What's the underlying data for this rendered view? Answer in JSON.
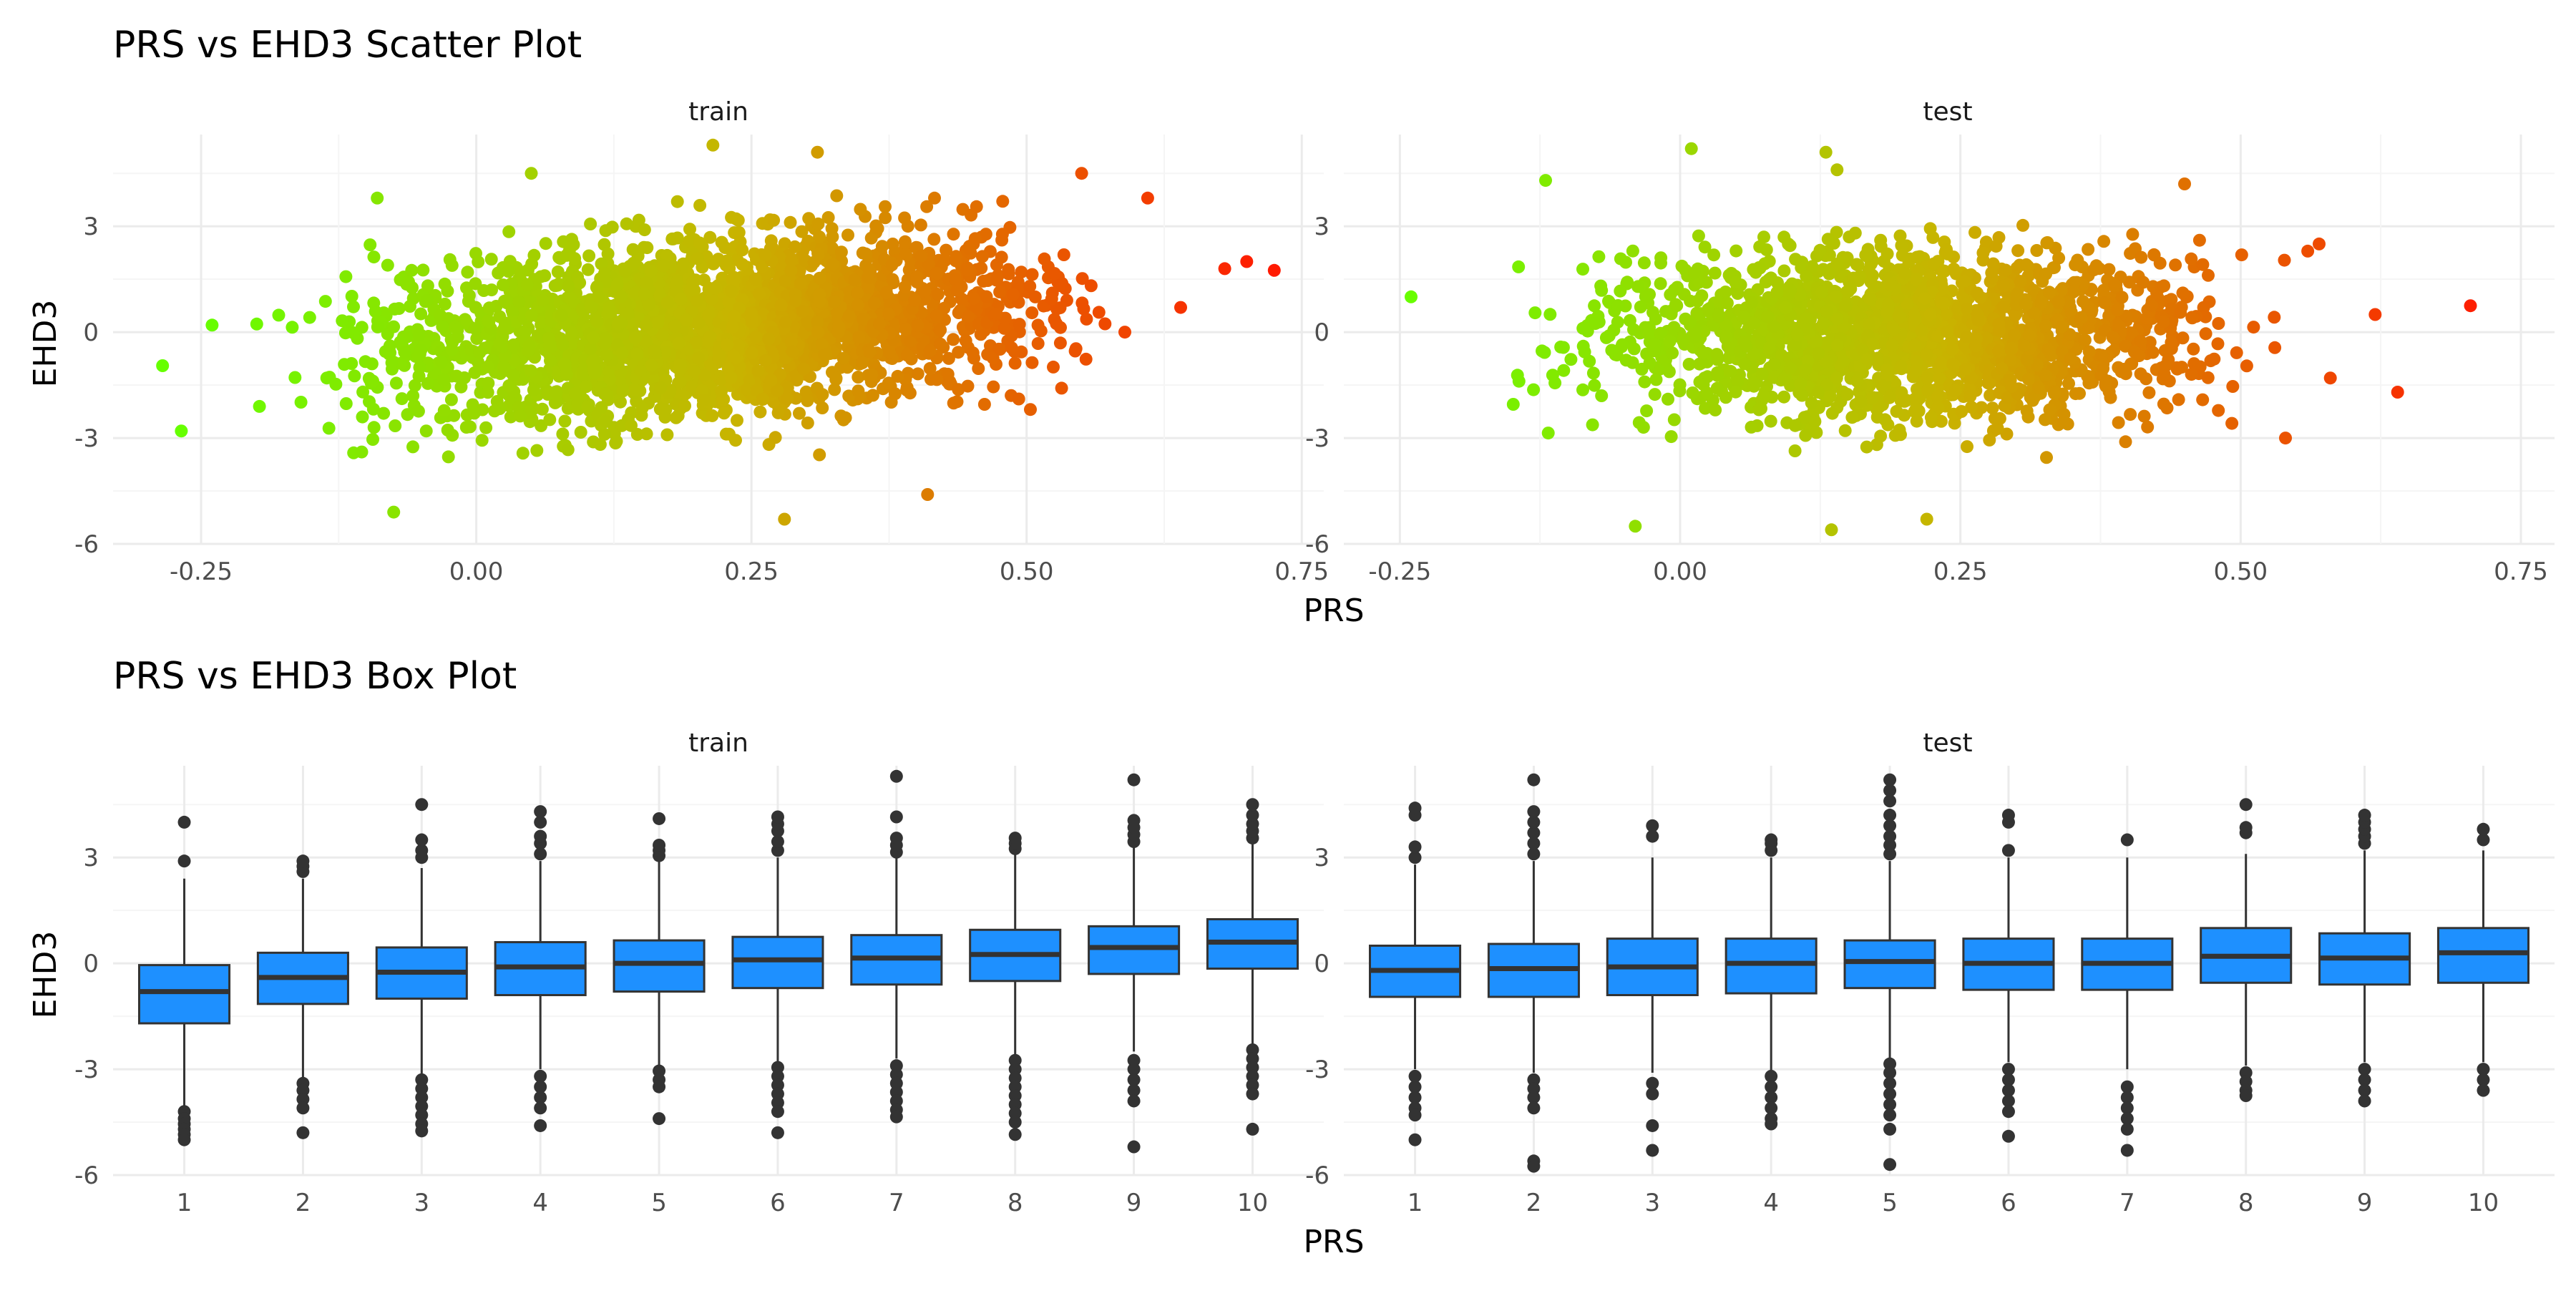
{
  "figure": {
    "scatter_title": "PRS vs EHD3 Scatter Plot",
    "box_title": "PRS vs EHD3 Box Plot"
  },
  "colors": {
    "grid_major": "#ebebeb",
    "grid_minor": "#f5f5f5",
    "box_fill": "#1e90ff",
    "box_stroke": "#333333",
    "gradient_low": "#66ff00",
    "gradient_mid": "#c8b400",
    "gradient_high": "#ff1a00"
  },
  "chart_data": [
    {
      "type": "scatter",
      "title": "PRS vs EHD3 Scatter Plot",
      "xlabel": "PRS",
      "ylabel": "EHD3",
      "color_scale": "gradient by PRS: green (low) to red (high)",
      "panels": [
        {
          "name": "train",
          "xlim": [
            -0.33,
            0.77
          ],
          "ylim": [
            -6.0,
            5.6
          ],
          "xticks": [
            -0.25,
            0.0,
            0.25,
            0.5,
            0.75
          ],
          "xtick_labels": [
            "-0.25",
            "0.00",
            "0.25",
            "0.50",
            "0.75"
          ],
          "yticks": [
            -6,
            -3,
            0,
            3
          ],
          "ytick_labels": [
            "-6",
            "-3",
            "0",
            "3"
          ],
          "cloud": {
            "x_min": -0.22,
            "x_max": 0.64,
            "slope": 2.3,
            "intercept": -0.15,
            "sd": 1.25,
            "n": 2600,
            "seed": 11
          },
          "outliers": [
            {
              "x": -0.285,
              "y": -0.95
            },
            {
              "x": -0.268,
              "y": -2.8
            },
            {
              "x": -0.24,
              "y": 0.2
            },
            {
              "x": -0.09,
              "y": 3.8
            },
            {
              "x": -0.075,
              "y": -5.1
            },
            {
              "x": 0.05,
              "y": 4.5
            },
            {
              "x": 0.215,
              "y": 5.3
            },
            {
              "x": 0.31,
              "y": 5.1
            },
            {
              "x": 0.28,
              "y": -5.3
            },
            {
              "x": 0.41,
              "y": -4.6
            },
            {
              "x": 0.55,
              "y": 4.5
            },
            {
              "x": 0.68,
              "y": 1.8
            },
            {
              "x": 0.7,
              "y": 2.0
            },
            {
              "x": 0.725,
              "y": 1.75
            },
            {
              "x": 0.64,
              "y": 0.7
            },
            {
              "x": 0.61,
              "y": 3.8
            }
          ]
        },
        {
          "name": "test",
          "xlim": [
            -0.3,
            0.78
          ],
          "ylim": [
            -6.0,
            5.6
          ],
          "xticks": [
            -0.25,
            0.0,
            0.25,
            0.5,
            0.75
          ],
          "xtick_labels": [
            "-0.25",
            "0.00",
            "0.25",
            "0.50",
            "0.75"
          ],
          "yticks": [
            -6,
            -3,
            0,
            3
          ],
          "ytick_labels": [
            "-6",
            "-3",
            "0",
            "3"
          ],
          "cloud": {
            "x_min": -0.18,
            "x_max": 0.58,
            "slope": 0.35,
            "intercept": -0.1,
            "sd": 1.2,
            "n": 1900,
            "seed": 29
          },
          "outliers": [
            {
              "x": -0.12,
              "y": 4.3
            },
            {
              "x": 0.01,
              "y": 5.2
            },
            {
              "x": 0.13,
              "y": 5.1
            },
            {
              "x": 0.14,
              "y": 4.6
            },
            {
              "x": 0.135,
              "y": -5.6
            },
            {
              "x": -0.04,
              "y": -5.5
            },
            {
              "x": 0.22,
              "y": -5.3
            },
            {
              "x": 0.54,
              "y": -3.0
            },
            {
              "x": 0.62,
              "y": 0.5
            },
            {
              "x": 0.64,
              "y": -1.7
            },
            {
              "x": 0.705,
              "y": 0.75
            },
            {
              "x": 0.57,
              "y": 2.5
            },
            {
              "x": -0.24,
              "y": 1.0
            },
            {
              "x": 0.45,
              "y": 4.2
            },
            {
              "x": 0.58,
              "y": -1.3
            }
          ]
        }
      ]
    },
    {
      "type": "box",
      "title": "PRS vs EHD3 Box Plot",
      "xlabel": "PRS",
      "ylabel": "EHD3",
      "categories": [
        "1",
        "2",
        "3",
        "4",
        "5",
        "6",
        "7",
        "8",
        "9",
        "10"
      ],
      "panels": [
        {
          "name": "train",
          "ylim": [
            -6.0,
            5.6
          ],
          "yticks": [
            -6,
            -3,
            0,
            3
          ],
          "ytick_labels": [
            "-6",
            "-3",
            "0",
            "3"
          ],
          "boxes": [
            {
              "q1": -1.7,
              "median": -0.8,
              "q3": -0.05,
              "low": -4.1,
              "high": 2.4,
              "outliers": [
                2.9,
                4.0,
                -4.2,
                -4.4,
                -4.55,
                -4.7,
                -4.85,
                -5.0
              ]
            },
            {
              "q1": -1.15,
              "median": -0.4,
              "q3": 0.3,
              "low": -3.3,
              "high": 2.4,
              "outliers": [
                2.6,
                2.75,
                2.9,
                -3.4,
                -3.6,
                -3.85,
                -4.1,
                -4.8
              ]
            },
            {
              "q1": -1.0,
              "median": -0.25,
              "q3": 0.45,
              "low": -3.2,
              "high": 2.7,
              "outliers": [
                3.0,
                3.2,
                3.5,
                4.5,
                -3.3,
                -3.55,
                -3.8,
                -4.05,
                -4.3,
                -4.55,
                -4.75
              ]
            },
            {
              "q1": -0.9,
              "median": -0.1,
              "q3": 0.6,
              "low": -3.0,
              "high": 2.9,
              "outliers": [
                3.1,
                3.4,
                3.6,
                4.0,
                4.3,
                -3.2,
                -3.5,
                -3.8,
                -4.1,
                -4.6
              ]
            },
            {
              "q1": -0.8,
              "median": 0.0,
              "q3": 0.65,
              "low": -2.9,
              "high": 2.9,
              "outliers": [
                3.05,
                3.2,
                3.35,
                4.1,
                -3.05,
                -3.3,
                -3.5,
                -4.4
              ]
            },
            {
              "q1": -0.7,
              "median": 0.1,
              "q3": 0.75,
              "low": -2.8,
              "high": 3.0,
              "outliers": [
                3.2,
                3.45,
                3.75,
                3.95,
                4.15,
                -2.95,
                -3.2,
                -3.45,
                -3.7,
                -3.95,
                -4.2,
                -4.8
              ]
            },
            {
              "q1": -0.6,
              "median": 0.15,
              "q3": 0.8,
              "low": -2.7,
              "high": 3.0,
              "outliers": [
                3.15,
                3.35,
                3.55,
                4.15,
                5.3,
                -2.9,
                -3.15,
                -3.4,
                -3.65,
                -3.9,
                -4.15,
                -4.35
              ]
            },
            {
              "q1": -0.5,
              "median": 0.25,
              "q3": 0.95,
              "low": -2.6,
              "high": 3.1,
              "outliers": [
                3.25,
                3.4,
                3.55,
                -2.75,
                -3.0,
                -3.25,
                -3.5,
                -3.75,
                -4.0,
                -4.25,
                -4.5,
                -4.85
              ]
            },
            {
              "q1": -0.3,
              "median": 0.45,
              "q3": 1.05,
              "low": -2.5,
              "high": 3.3,
              "outliers": [
                3.45,
                3.65,
                3.85,
                4.05,
                5.2,
                -2.75,
                -3.0,
                -3.3,
                -3.6,
                -3.9,
                -5.2
              ]
            },
            {
              "q1": -0.15,
              "median": 0.6,
              "q3": 1.25,
              "low": -2.3,
              "high": 3.4,
              "outliers": [
                3.55,
                3.75,
                3.95,
                4.2,
                4.5,
                -2.45,
                -2.7,
                -2.95,
                -3.2,
                -3.45,
                -3.7,
                -4.7
              ]
            }
          ]
        },
        {
          "name": "test",
          "ylim": [
            -6.0,
            5.6
          ],
          "yticks": [
            -6,
            -3,
            0,
            3
          ],
          "ytick_labels": [
            "-6",
            "-3",
            "0",
            "3"
          ],
          "boxes": [
            {
              "q1": -0.95,
              "median": -0.2,
              "q3": 0.5,
              "low": -3.0,
              "high": 2.8,
              "outliers": [
                3.0,
                3.3,
                4.2,
                4.4,
                -3.2,
                -3.5,
                -3.8,
                -4.1,
                -4.3,
                -5.0
              ]
            },
            {
              "q1": -0.95,
              "median": -0.15,
              "q3": 0.55,
              "low": -3.1,
              "high": 2.9,
              "outliers": [
                3.1,
                3.4,
                3.7,
                4.0,
                4.3,
                5.2,
                -3.3,
                -3.55,
                -3.8,
                -4.1,
                -5.6,
                -5.75
              ]
            },
            {
              "q1": -0.9,
              "median": -0.1,
              "q3": 0.7,
              "low": -3.1,
              "high": 3.0,
              "outliers": [
                3.6,
                3.9,
                -3.4,
                -3.7,
                -4.6,
                -5.3
              ]
            },
            {
              "q1": -0.85,
              "median": 0.0,
              "q3": 0.7,
              "low": -3.1,
              "high": 3.0,
              "outliers": [
                3.2,
                3.4,
                3.5,
                -3.2,
                -3.5,
                -3.8,
                -4.1,
                -4.4,
                -4.55
              ]
            },
            {
              "q1": -0.7,
              "median": 0.05,
              "q3": 0.65,
              "low": -2.7,
              "high": 2.9,
              "outliers": [
                3.1,
                3.35,
                3.6,
                3.9,
                4.2,
                4.6,
                4.9,
                5.2,
                -2.85,
                -3.1,
                -3.4,
                -3.7,
                -4.0,
                -4.3,
                -4.7,
                -5.7
              ]
            },
            {
              "q1": -0.75,
              "median": 0.0,
              "q3": 0.7,
              "low": -2.8,
              "high": 3.0,
              "outliers": [
                3.2,
                4.0,
                4.2,
                -3.0,
                -3.3,
                -3.6,
                -3.9,
                -4.2,
                -4.9
              ]
            },
            {
              "q1": -0.75,
              "median": 0.0,
              "q3": 0.7,
              "low": -3.0,
              "high": 3.0,
              "outliers": [
                3.5,
                -3.5,
                -3.8,
                -4.1,
                -4.4,
                -4.7,
                -5.3
              ]
            },
            {
              "q1": -0.55,
              "median": 0.2,
              "q3": 1.0,
              "low": -2.9,
              "high": 3.1,
              "outliers": [
                3.7,
                3.85,
                4.5,
                -3.1,
                -3.35,
                -3.6,
                -3.75
              ]
            },
            {
              "q1": -0.6,
              "median": 0.15,
              "q3": 0.85,
              "low": -2.8,
              "high": 3.2,
              "outliers": [
                3.4,
                3.6,
                3.8,
                4.0,
                4.2,
                -3.0,
                -3.3,
                -3.6,
                -3.9
              ]
            },
            {
              "q1": -0.55,
              "median": 0.3,
              "q3": 1.0,
              "low": -2.8,
              "high": 3.2,
              "outliers": [
                3.5,
                3.8,
                -3.0,
                -3.3,
                -3.6
              ]
            }
          ]
        }
      ]
    }
  ]
}
